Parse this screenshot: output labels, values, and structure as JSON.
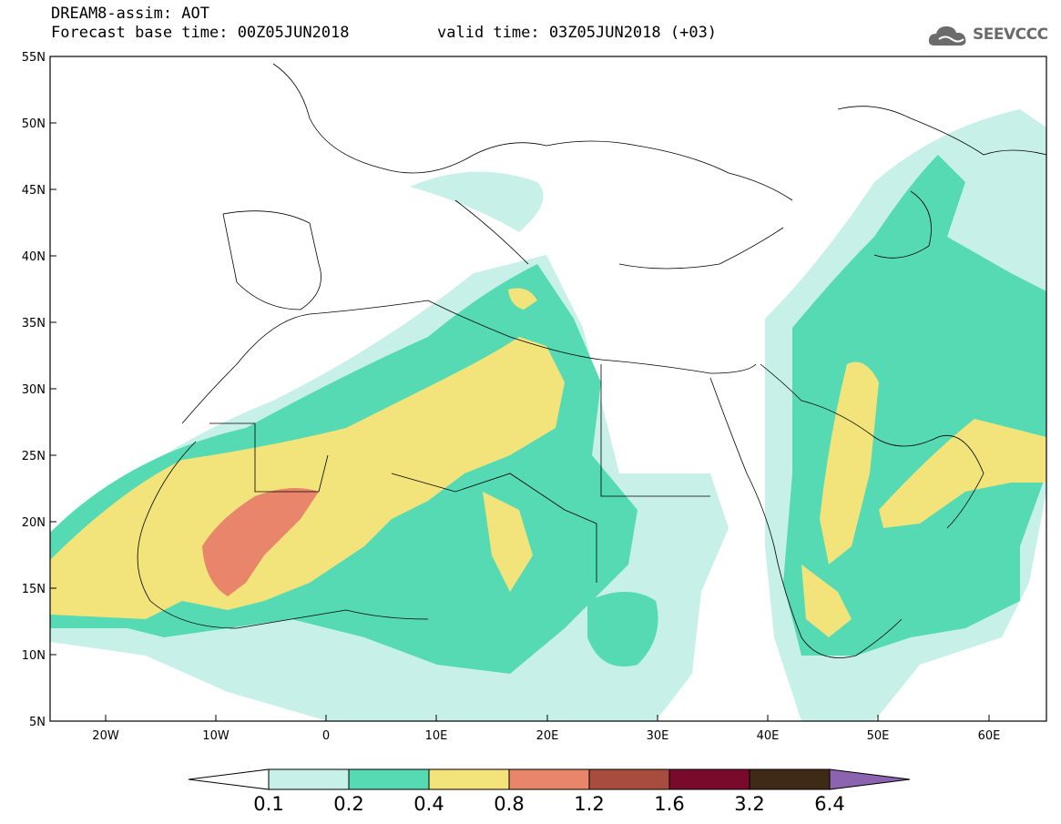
{
  "header": {
    "line1": "DREAM8-assim: AOT",
    "line2": "Forecast base time: 00Z05JUN2018",
    "line3": "valid time: 03Z05JUN2018 (+03)"
  },
  "logo": {
    "text": "SEEVCCC",
    "icon": "cloud-logo-icon"
  },
  "map": {
    "lon_range": [
      -25,
      65
    ],
    "lat_range": [
      5,
      55
    ],
    "lat_labels": [
      "55N",
      "50N",
      "45N",
      "40N",
      "35N",
      "30N",
      "25N",
      "20N",
      "15N",
      "10N",
      "5N"
    ],
    "lon_labels": [
      "20W",
      "10W",
      "0",
      "10E",
      "20E",
      "30E",
      "40E",
      "50E",
      "60E"
    ]
  },
  "colorbar": {
    "labels": [
      "0.1",
      "0.2",
      "0.4",
      "0.8",
      "1.2",
      "1.6",
      "3.2",
      "6.4"
    ],
    "colors": [
      "#ffffff",
      "#c6f0e8",
      "#55dab4",
      "#f2e47a",
      "#e8856a",
      "#a84c3e",
      "#7a0a2c",
      "#3e2a15",
      "#8c63ae"
    ]
  }
}
